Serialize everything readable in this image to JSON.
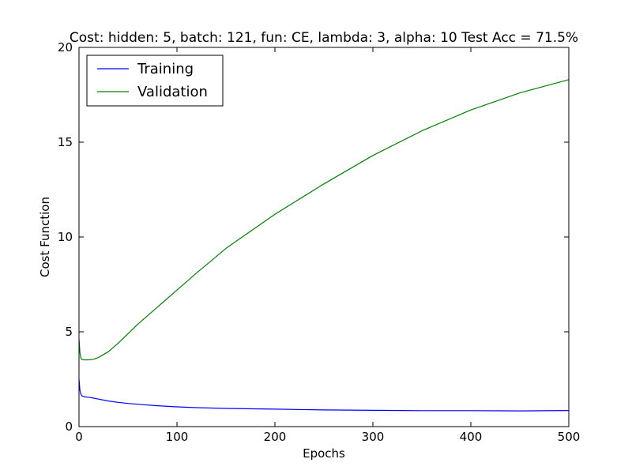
{
  "chart_data": {
    "type": "line",
    "title": "Cost: hidden: 5, batch: 121, fun: CE, lambda: 3, alpha: 10  Test Acc = 71.5%",
    "xlabel": "Epochs",
    "ylabel": "Cost Function",
    "xlim": [
      0,
      500
    ],
    "ylim": [
      0,
      20
    ],
    "xticks": [
      0,
      100,
      200,
      300,
      400,
      500
    ],
    "yticks": [
      0,
      5,
      10,
      15,
      20
    ],
    "grid": false,
    "legend": "top-left",
    "series": [
      {
        "name": "Training",
        "color": "#0000ff",
        "x": [
          0,
          1,
          2,
          3,
          5,
          8,
          10,
          15,
          20,
          30,
          40,
          50,
          60,
          80,
          100,
          120,
          150,
          200,
          250,
          300,
          350,
          400,
          450,
          500
        ],
        "y": [
          2.5,
          1.9,
          1.7,
          1.62,
          1.58,
          1.56,
          1.55,
          1.5,
          1.45,
          1.35,
          1.28,
          1.22,
          1.18,
          1.1,
          1.04,
          1.0,
          0.96,
          0.92,
          0.88,
          0.86,
          0.84,
          0.84,
          0.83,
          0.85
        ]
      },
      {
        "name": "Validation",
        "color": "#008000",
        "x": [
          0,
          1,
          2,
          3,
          5,
          8,
          10,
          15,
          20,
          30,
          40,
          50,
          60,
          80,
          100,
          120,
          150,
          200,
          250,
          300,
          350,
          400,
          450,
          500
        ],
        "y": [
          4.6,
          3.9,
          3.6,
          3.55,
          3.52,
          3.52,
          3.52,
          3.55,
          3.65,
          3.95,
          4.4,
          4.9,
          5.4,
          6.3,
          7.2,
          8.1,
          9.4,
          11.2,
          12.8,
          14.3,
          15.6,
          16.7,
          17.6,
          18.3
        ]
      }
    ]
  }
}
